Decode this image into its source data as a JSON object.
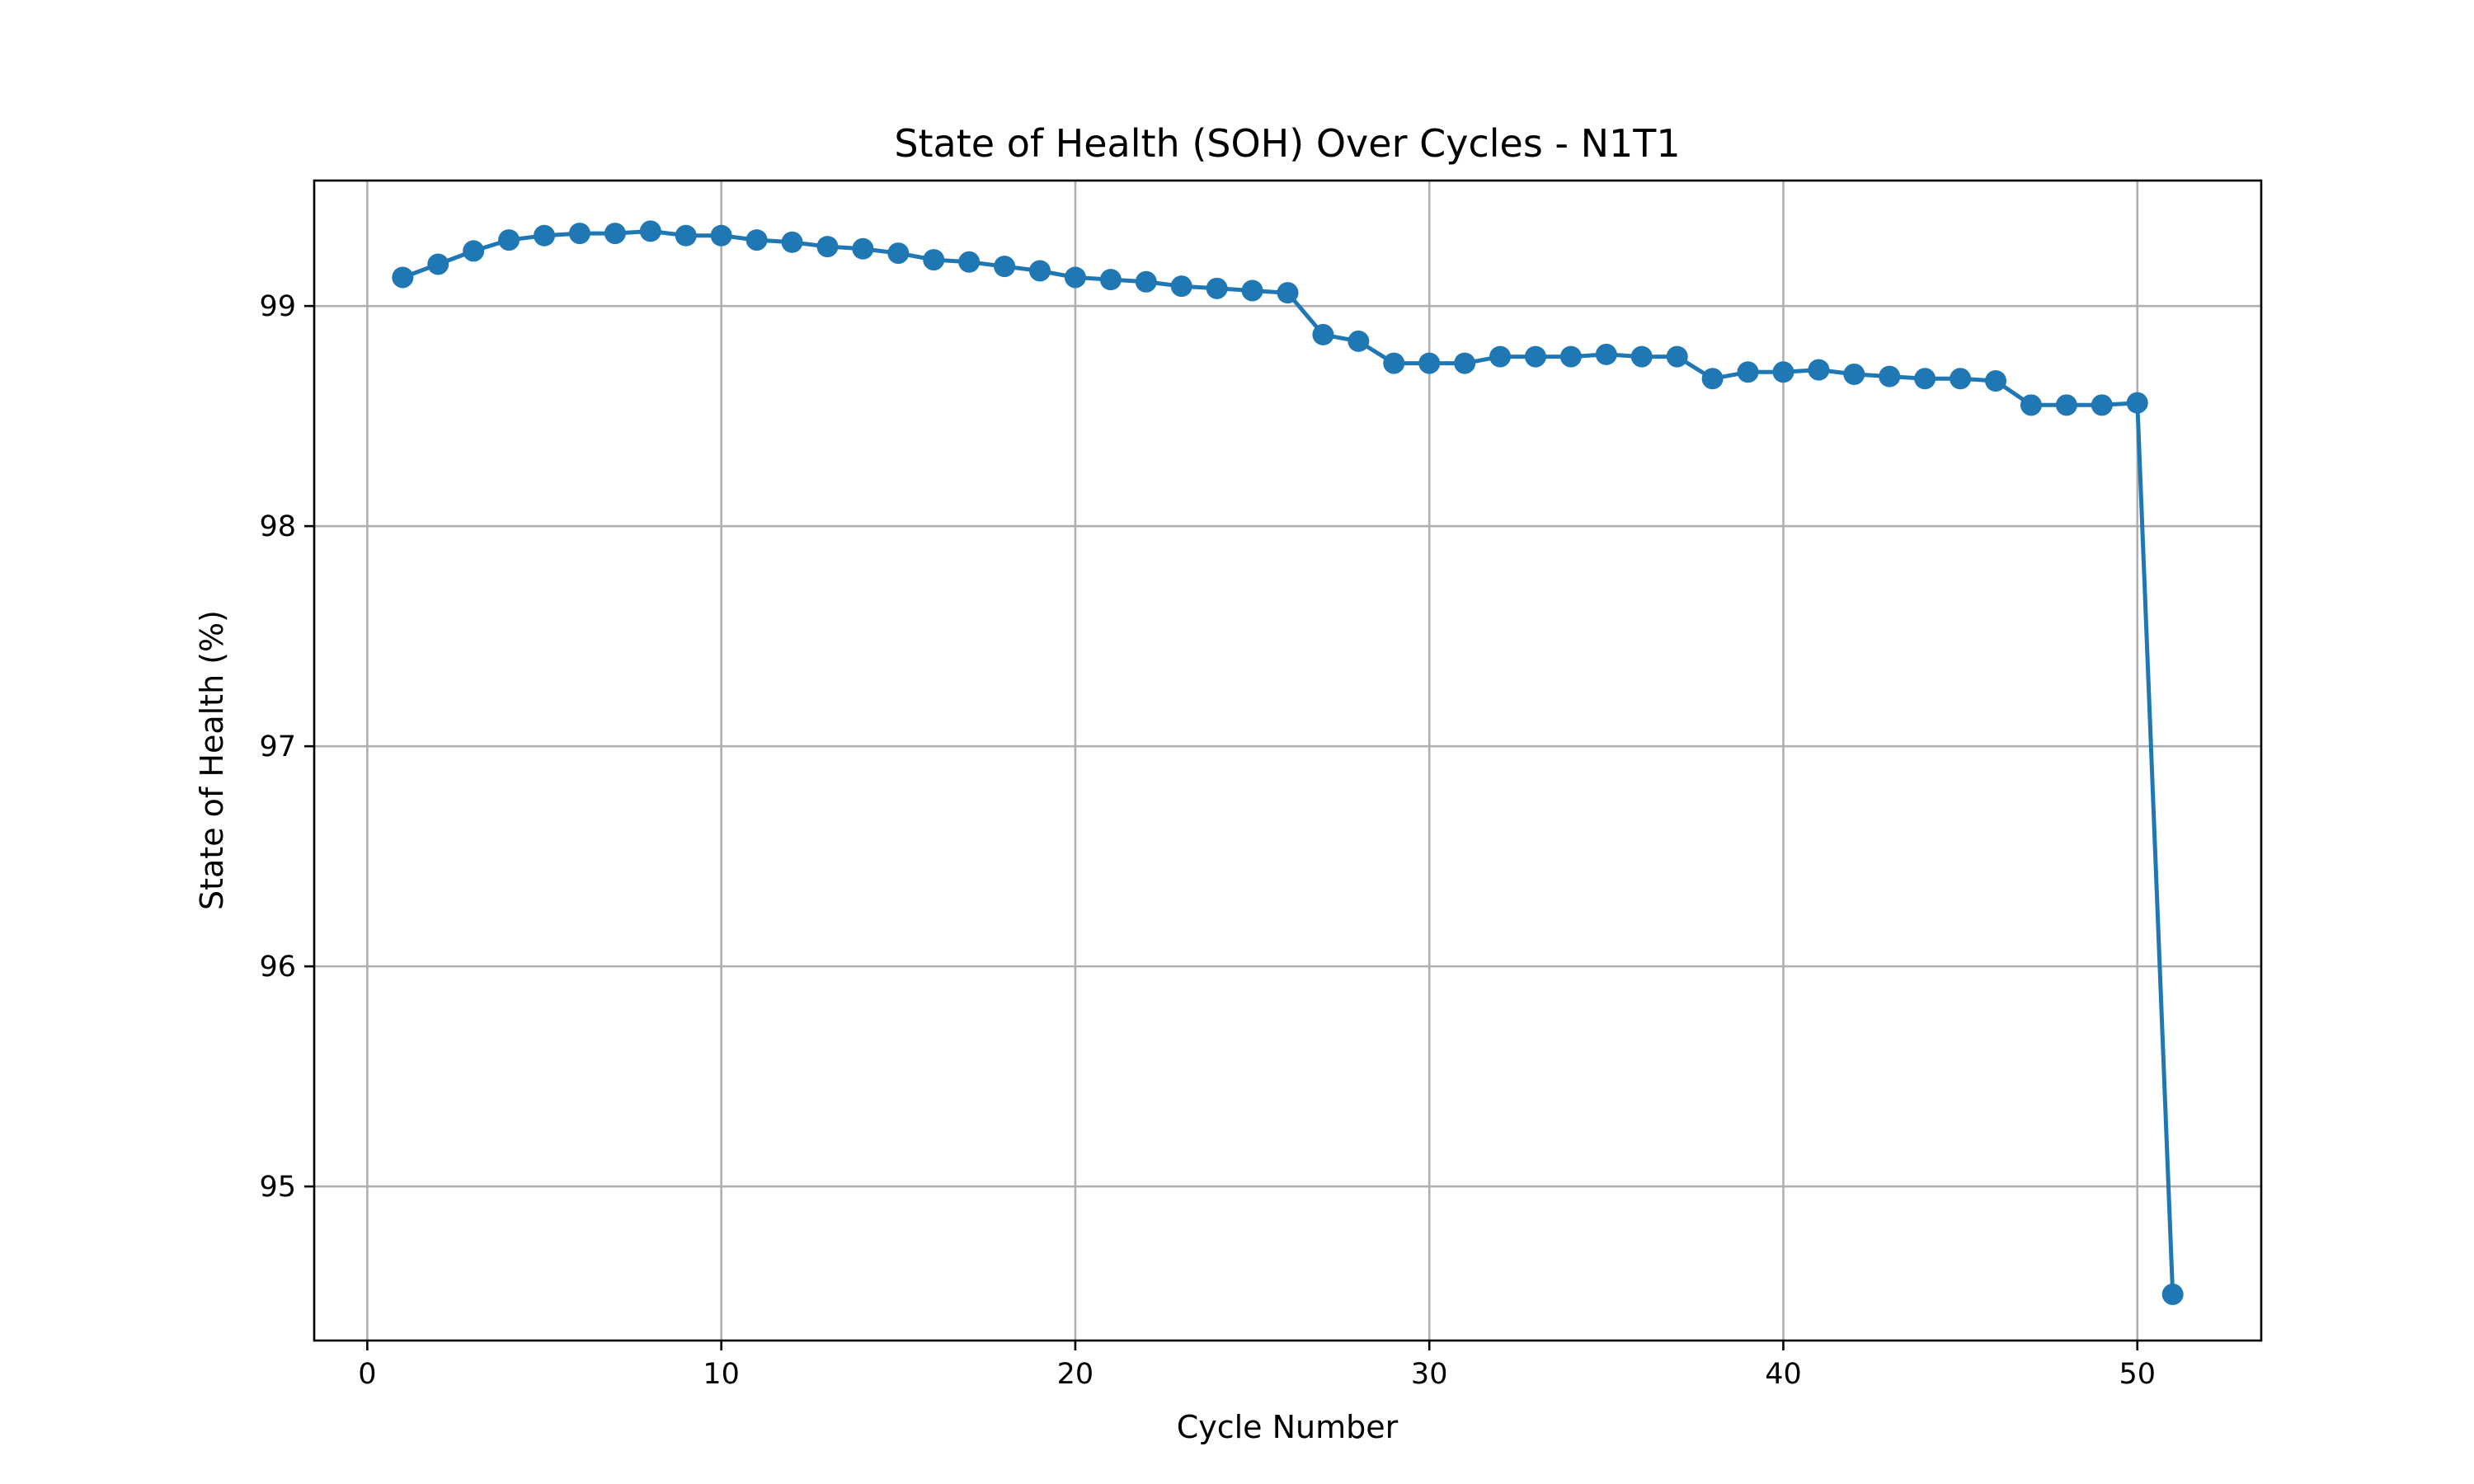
{
  "chart_data": {
    "type": "line",
    "title": "State of Health (SOH) Over Cycles - N1T1",
    "xlabel": "Cycle Number",
    "ylabel": "State of Health (%)",
    "xlim": [
      -1.5,
      53.5
    ],
    "ylim": [
      94.3,
      99.57
    ],
    "xticks": [
      0,
      10,
      20,
      30,
      40,
      50
    ],
    "yticks": [
      95,
      96,
      97,
      98,
      99
    ],
    "grid": true,
    "legend": "none",
    "line_color": "#1f77b4",
    "marker": "circle",
    "series": [
      {
        "x": [
          1,
          2,
          3,
          4,
          5,
          6,
          7,
          8,
          9,
          10,
          11,
          12,
          13,
          14,
          15,
          16,
          17,
          18,
          19,
          20,
          21,
          22,
          23,
          24,
          25,
          26,
          27,
          28,
          29,
          30,
          31,
          32,
          33,
          34,
          35,
          36,
          37,
          38,
          39,
          40,
          41,
          42,
          43,
          44,
          45,
          46,
          47,
          48,
          49,
          50,
          51
        ],
        "values": [
          99.13,
          99.19,
          99.25,
          99.3,
          99.32,
          99.33,
          99.33,
          99.34,
          99.32,
          99.32,
          99.3,
          99.29,
          99.27,
          99.26,
          99.24,
          99.21,
          99.2,
          99.18,
          99.16,
          99.13,
          99.12,
          99.11,
          99.09,
          99.08,
          99.07,
          99.06,
          98.87,
          98.84,
          98.74,
          98.74,
          98.74,
          98.77,
          98.77,
          98.77,
          98.78,
          98.77,
          98.77,
          98.67,
          98.7,
          98.7,
          98.71,
          98.69,
          98.68,
          98.67,
          98.67,
          98.66,
          98.55,
          98.55,
          98.55,
          98.56,
          94.51
        ]
      }
    ]
  }
}
